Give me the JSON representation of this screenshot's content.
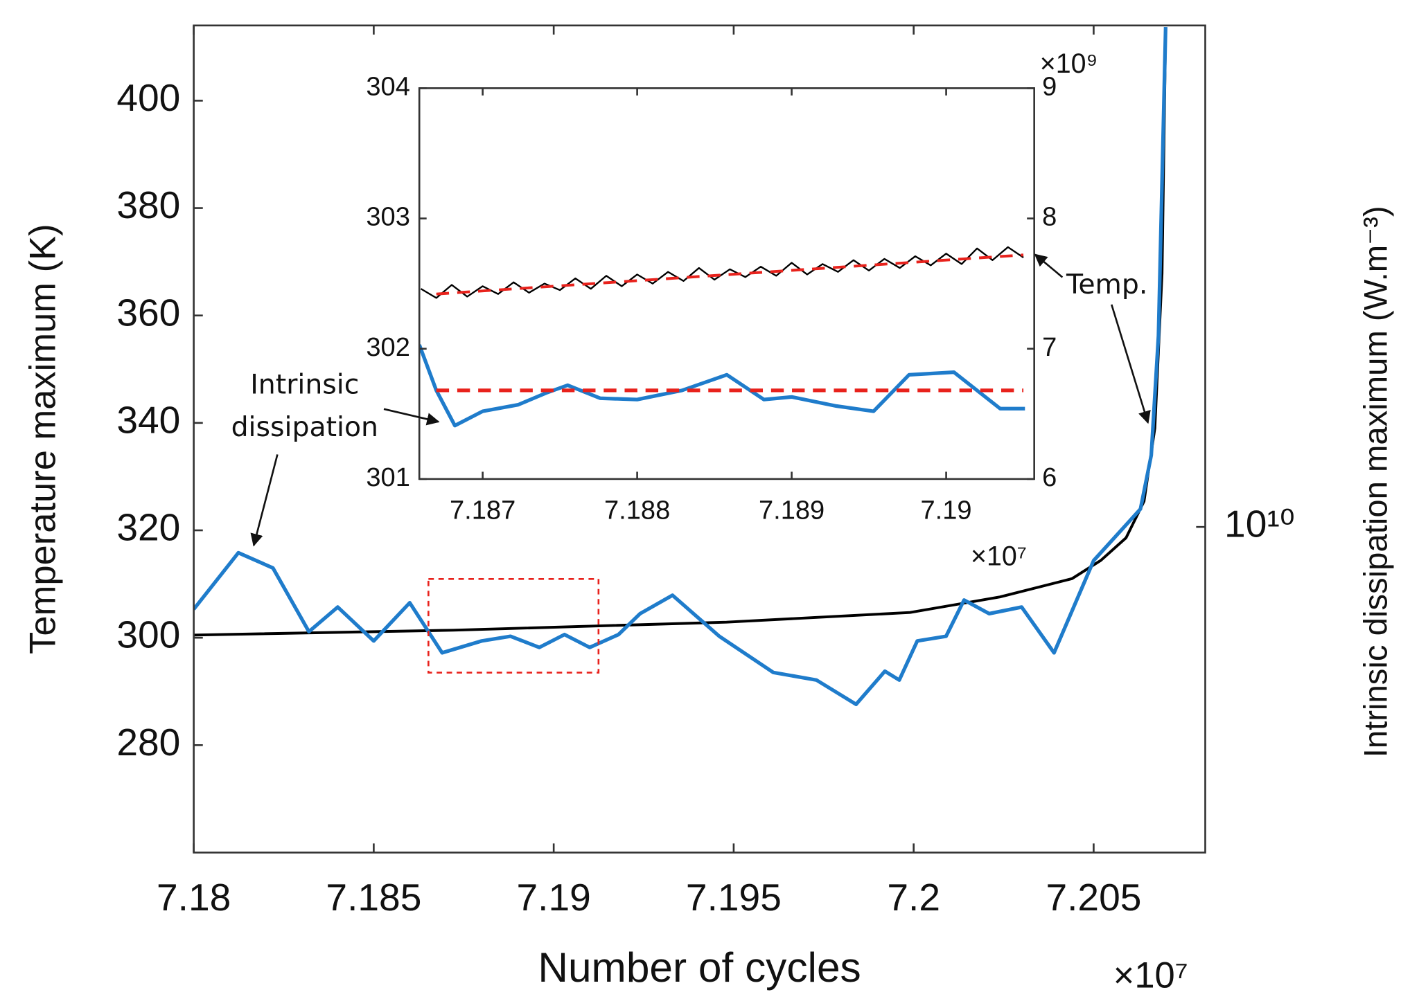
{
  "chart_data": [
    {
      "type": "line",
      "xlabel": "Number of cycles",
      "ylabel": "Temperature maximum (K)",
      "y2label": "Intrinsic dissipation maximum (W.m⁻³)",
      "x_multiplier": "×10⁷",
      "xlim": [
        7.18,
        7.2081
      ],
      "xticks": [
        7.18,
        7.185,
        7.19,
        7.195,
        7.2,
        7.205
      ],
      "ylim": [
        260,
        414
      ],
      "yticks": [
        280,
        300,
        320,
        340,
        360,
        380,
        400
      ],
      "y2lim": [
        4900000000,
        30000000000
      ],
      "y2scale": "log",
      "y2ticks": [
        {
          "value": 10000000000,
          "label": "10¹⁰"
        }
      ],
      "annotations": [
        "Intrinsic",
        "dissipation"
      ],
      "series": [
        {
          "color": "#000000",
          "width": 3,
          "x": [
            7.18,
            7.1872,
            7.1948,
            7.1999,
            7.2024,
            7.2044,
            7.2052,
            7.2059,
            7.2064,
            7.2067,
            7.2069,
            7.207
          ],
          "values": [
            300.5,
            301.4,
            302.9,
            304.7,
            307.6,
            311.0,
            314.4,
            318.6,
            325.4,
            339.0,
            367.8,
            413.6
          ]
        },
        {
          "color": "#1f7ccb",
          "width": 4,
          "axis": "y2",
          "x": [
            7.18,
            7.18124,
            7.1822,
            7.1832,
            7.184,
            7.185,
            7.186,
            7.1869,
            7.188,
            7.1888,
            7.1896,
            7.1903,
            7.191,
            7.1918,
            7.1924,
            7.1933,
            7.1946,
            7.1961,
            7.1973,
            7.1984,
            7.1992,
            7.1996,
            7.2001,
            7.2009,
            7.2014,
            7.2021,
            7.203,
            7.2039,
            7.205,
            7.2063,
            7.2066,
            7.2068,
            7.207
          ],
          "values": [
            8350000000,
            9450000000,
            9140000000,
            7950000000,
            8390000000,
            7790000000,
            8470000000,
            7590000000,
            7790000000,
            7870000000,
            7680000000,
            7900000000,
            7680000000,
            7900000000,
            8270000000,
            8610000000,
            7870000000,
            7270000000,
            7150000000,
            6780000000,
            7290000000,
            7150000000,
            7790000000,
            7870000000,
            8520000000,
            8270000000,
            8390000000,
            7590000000,
            9290000000,
            10400000000,
            11700000000,
            15200000000,
            29900000000
          ]
        }
      ]
    },
    {
      "type": "line",
      "x_multiplier": "×10⁷",
      "y2_multiplier": "×10⁹",
      "xlim": [
        7.18659,
        7.19057
      ],
      "xticks": [
        7.187,
        7.188,
        7.189,
        7.19
      ],
      "ylim": [
        301,
        304
      ],
      "yticks": [
        301,
        302,
        303,
        304
      ],
      "y2lim": [
        6,
        9
      ],
      "y2ticks": [
        6,
        7,
        8,
        9
      ],
      "annotations": [
        "Temp."
      ],
      "series": [
        {
          "color": "#000000",
          "width": 1.8,
          "x": [
            7.1866,
            7.1867,
            7.1868,
            7.1869,
            7.187,
            7.1871,
            7.1872,
            7.1873,
            7.1874,
            7.1875,
            7.1876,
            7.1877,
            7.1878,
            7.1879,
            7.188,
            7.1881,
            7.1882,
            7.1883,
            7.1884,
            7.1885,
            7.1886,
            7.1887,
            7.1888,
            7.1889,
            7.189,
            7.1891,
            7.1892,
            7.1893,
            7.1894,
            7.1895,
            7.1896,
            7.1897,
            7.1898,
            7.1899,
            7.19,
            7.1901,
            7.1902,
            7.1903,
            7.1904,
            7.1905
          ],
          "values": [
            302.46,
            302.39,
            302.49,
            302.4,
            302.48,
            302.42,
            302.51,
            302.43,
            302.5,
            302.45,
            302.54,
            302.46,
            302.56,
            302.48,
            302.57,
            302.5,
            302.59,
            302.52,
            302.62,
            302.53,
            302.61,
            302.55,
            302.63,
            302.56,
            302.66,
            302.57,
            302.65,
            302.59,
            302.68,
            302.6,
            302.69,
            302.62,
            302.71,
            302.64,
            302.73,
            302.65,
            302.77,
            302.68,
            302.78,
            302.7
          ]
        },
        {
          "color": "#e8221c",
          "width": 3,
          "dash": true,
          "x": [
            7.1867,
            7.1905
          ],
          "values": [
            302.42,
            302.72
          ]
        },
        {
          "color": "#1f7ccb",
          "width": 4,
          "axis": "y2",
          "x": [
            7.18659,
            7.1867,
            7.18682,
            7.187,
            7.18723,
            7.18741,
            7.18755,
            7.18776,
            7.188,
            7.18829,
            7.18858,
            7.18882,
            7.189,
            7.18929,
            7.18953,
            7.18976,
            7.19005,
            7.19035,
            7.19051
          ],
          "values": [
            7.03,
            6.68,
            6.41,
            6.52,
            6.57,
            6.66,
            6.72,
            6.62,
            6.61,
            6.68,
            6.8,
            6.61,
            6.63,
            6.56,
            6.52,
            6.8,
            6.82,
            6.54,
            6.54
          ]
        },
        {
          "color": "#e8221c",
          "width": 4,
          "dash": true,
          "axis": "y2",
          "x": [
            7.1867,
            7.1905
          ],
          "values": [
            6.68,
            6.68
          ]
        }
      ]
    }
  ]
}
